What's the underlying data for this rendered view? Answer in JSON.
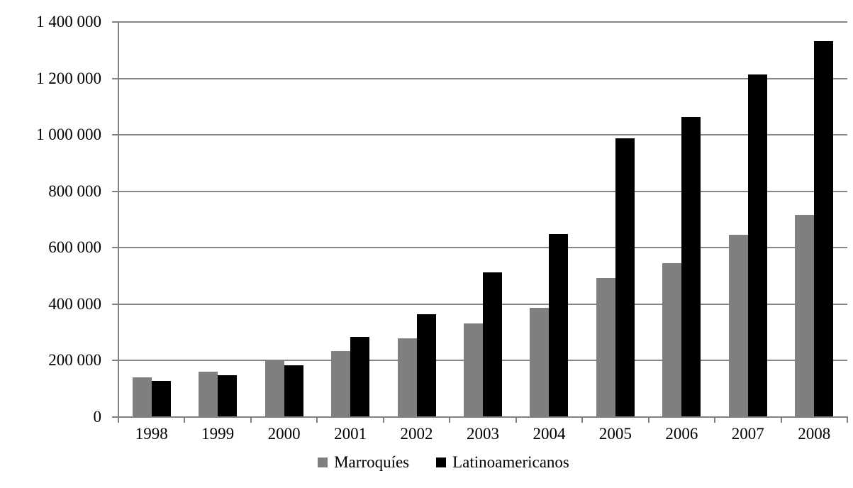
{
  "chart_data": {
    "type": "bar",
    "title": "",
    "xlabel": "",
    "ylabel": "",
    "categories": [
      "1998",
      "1999",
      "2000",
      "2001",
      "2002",
      "2003",
      "2004",
      "2005",
      "2006",
      "2007",
      "2008"
    ],
    "series": [
      {
        "name": "Marroquíes",
        "color": "#7f7f7f",
        "values": [
          140000,
          162000,
          200000,
          235000,
          280000,
          332000,
          386000,
          493000,
          545000,
          647000,
          716000
        ]
      },
      {
        "name": "Latinoamericanos",
        "color": "#000000",
        "values": [
          129000,
          149000,
          184000,
          285000,
          365000,
          513000,
          648000,
          988000,
          1062000,
          1215000,
          1331000
        ]
      }
    ],
    "ylim": [
      0,
      1400000
    ],
    "ytick_interval": 200000,
    "ytick_labels": [
      "0",
      "200 000",
      "400 000",
      "600 000",
      "800 000",
      "1 000 000",
      "1 200 000",
      "1 400 000"
    ],
    "grid": true,
    "legend_position": "bottom"
  },
  "colors": {
    "background": "#ffffff",
    "grid": "#878787",
    "axis": "#808080",
    "text": "#000000",
    "bar_gray": "#7f7f7f",
    "bar_black": "#000000"
  }
}
